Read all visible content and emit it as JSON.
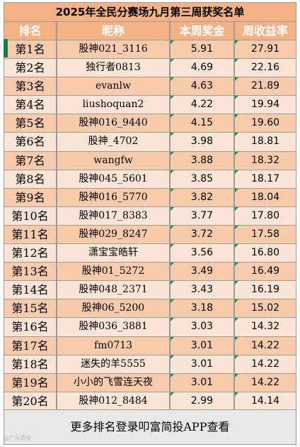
{
  "title": "2025年全民分赛场九月第三周获奖名单",
  "headers": {
    "rank": "排名",
    "nickname": "昵称",
    "weekly_prize": "本周奖金",
    "weekly_return": "周收益率"
  },
  "rows": [
    {
      "rank": "第1名",
      "nickname": "股神021_3116",
      "prize": "5.91",
      "return": "27.91"
    },
    {
      "rank": "第2名",
      "nickname": "独行者0813",
      "prize": "4.69",
      "return": "22.16"
    },
    {
      "rank": "第3名",
      "nickname": "evanlw",
      "prize": "4.63",
      "return": "21.89"
    },
    {
      "rank": "第4名",
      "nickname": "liushoquan2",
      "prize": "4.22",
      "return": "19.94"
    },
    {
      "rank": "第5名",
      "nickname": "股神016_9440",
      "prize": "4.15",
      "return": "19.60"
    },
    {
      "rank": "第6名",
      "nickname": "股神_4702",
      "prize": "3.98",
      "return": "18.81"
    },
    {
      "rank": "第7名",
      "nickname": "wangfw",
      "prize": "3.88",
      "return": "18.32"
    },
    {
      "rank": "第8名",
      "nickname": "股神045_5601",
      "prize": "3.85",
      "return": "18.17"
    },
    {
      "rank": "第9名",
      "nickname": "股神016_5770",
      "prize": "3.82",
      "return": "18.04"
    },
    {
      "rank": "第10名",
      "nickname": "股神017_8383",
      "prize": "3.77",
      "return": "17.80"
    },
    {
      "rank": "第11名",
      "nickname": "股神029_8247",
      "prize": "3.72",
      "return": "17.58"
    },
    {
      "rank": "第12名",
      "nickname": "潇宝宝皓轩",
      "prize": "3.56",
      "return": "16.80"
    },
    {
      "rank": "第13名",
      "nickname": "股神01_5272",
      "prize": "3.49",
      "return": "16.49"
    },
    {
      "rank": "第14名",
      "nickname": "股神048_2371",
      "prize": "3.43",
      "return": "16.19"
    },
    {
      "rank": "第15名",
      "nickname": "股神06_5200",
      "prize": "3.18",
      "return": "15.02"
    },
    {
      "rank": "第16名",
      "nickname": "股神036_3881",
      "prize": "3.03",
      "return": "14.32"
    },
    {
      "rank": "第17名",
      "nickname": "fm0713",
      "prize": "3.01",
      "return": "14.22"
    },
    {
      "rank": "第18名",
      "nickname": "迷失的羊5555",
      "prize": "3.01",
      "return": "14.22"
    },
    {
      "rank": "第19名",
      "nickname": "小小的飞雪连天夜",
      "prize": "3.01",
      "return": "14.22"
    },
    {
      "rank": "第20名",
      "nickname": "股神012_8484",
      "prize": "2.99",
      "return": "14.14"
    }
  ],
  "footer": "更多排名登录叩富简投APP查看",
  "watermark": "@广众简投",
  "colors": {
    "header_bg": "#f4b183",
    "row_odd": "#f8cbad",
    "row_even": "#fbe5d6",
    "footer_bg": "#e8e8e8",
    "marker": "#1f8f3a"
  }
}
